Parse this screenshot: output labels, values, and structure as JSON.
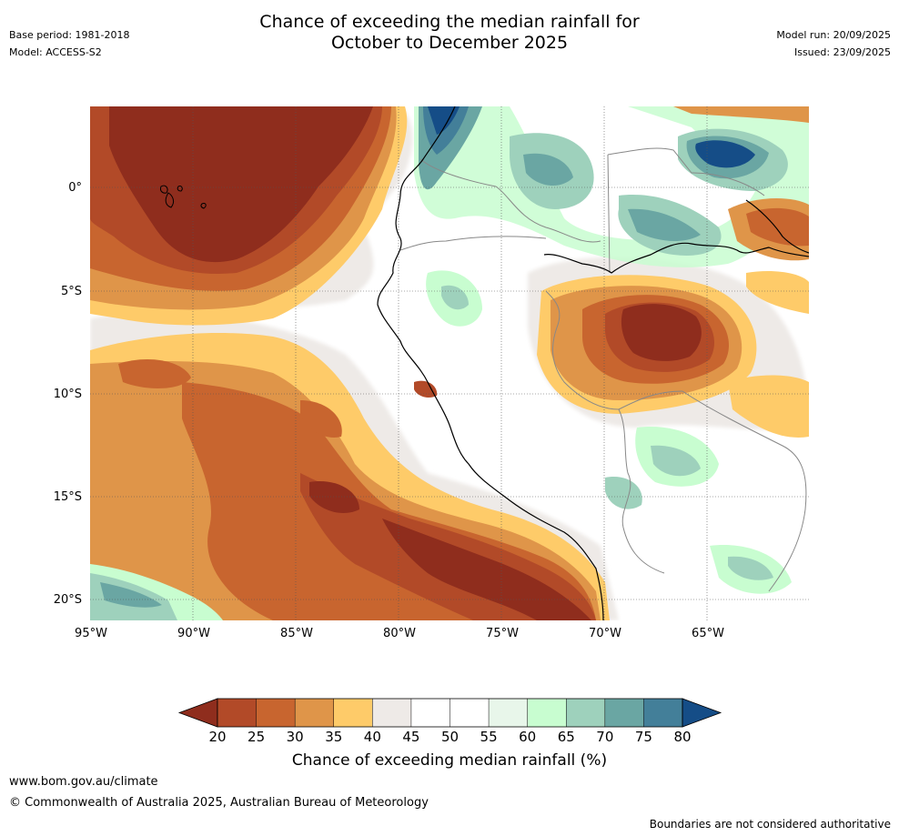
{
  "header": {
    "title_line1": "Chance of exceeding the median rainfall for",
    "title_line2": "October to December 2025",
    "base_period": "Base period: 1981-2018",
    "model": "Model: ACCESS-S2",
    "model_run": "Model run: 20/09/2025",
    "issued": "Issued: 23/09/2025"
  },
  "axes": {
    "y_ticks": [
      "0°",
      "5°S",
      "10°S",
      "15°S",
      "20°S"
    ],
    "x_ticks": [
      "95°W",
      "90°W",
      "85°W",
      "80°W",
      "75°W",
      "70°W",
      "65°W"
    ]
  },
  "colorbar": {
    "label": "Chance of exceeding median rainfall (%)",
    "ticks": [
      "20",
      "25",
      "30",
      "35",
      "40",
      "45",
      "50",
      "55",
      "60",
      "65",
      "70",
      "75",
      "80"
    ],
    "colors": [
      "#8f2d1d",
      "#b24a28",
      "#c8652f",
      "#df9549",
      "#fecb69",
      "#eeeae7",
      "#ffffff",
      "#ffffff",
      "#e8f6ea",
      "#c8fdd0",
      "#9ed1bc",
      "#6aa6a3",
      "#437f99",
      "#154d87"
    ]
  },
  "footer": {
    "url": "www.bom.gov.au/climate",
    "copyright": "© Commonwealth of Australia 2025, Australian Bureau of Meteorology",
    "disclaimer": "Boundaries are not considered authoritative"
  }
}
